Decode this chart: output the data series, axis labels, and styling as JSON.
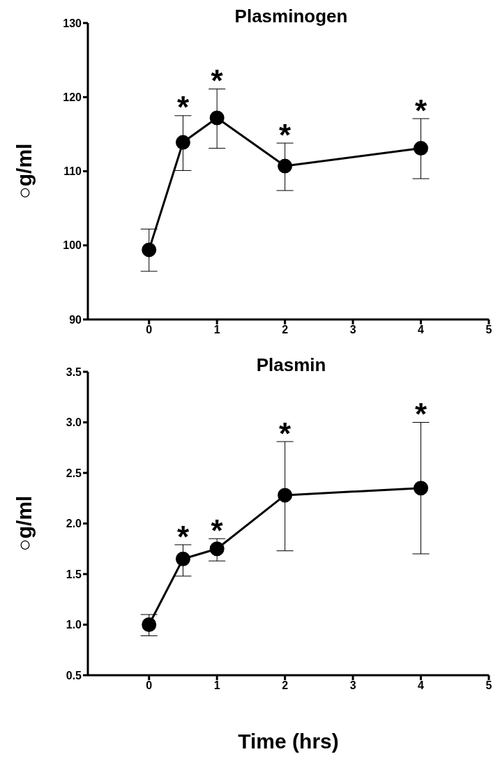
{
  "chart_data": [
    {
      "type": "line",
      "title": "Plasminogen",
      "ylabel": "○g/ml",
      "x": [
        0,
        0.5,
        1,
        2,
        4
      ],
      "series": [
        {
          "color": "#000000",
          "values": [
            99.4,
            113.9,
            117.2,
            110.7,
            113.1
          ],
          "errors": [
            [
              96.5,
              102.2
            ],
            [
              110.1,
              117.5
            ],
            [
              113.1,
              121.1
            ],
            [
              107.4,
              113.8
            ],
            [
              109.0,
              117.1
            ]
          ]
        }
      ],
      "xlim": [
        -0.9,
        5
      ],
      "xticks": [
        0,
        1,
        2,
        3,
        4,
        5
      ],
      "ylim": [
        90,
        130
      ],
      "yticks": [
        90,
        100,
        110,
        120,
        130
      ],
      "marker": "circle",
      "line_style": "solid",
      "grid": false,
      "legend": false,
      "annotations": [
        {
          "text": "*",
          "x": 0.5,
          "y": 117.5
        },
        {
          "text": "*",
          "x": 1,
          "y": 121.1
        },
        {
          "text": "*",
          "x": 2,
          "y": 113.8
        },
        {
          "text": "*",
          "x": 4,
          "y": 117.1
        }
      ]
    },
    {
      "type": "line",
      "title": "Plasmin",
      "ylabel": "○g/ml",
      "xlabel": "Time (hrs)",
      "x": [
        0,
        0.5,
        1,
        2,
        4
      ],
      "series": [
        {
          "color": "#000000",
          "values": [
            1.0,
            1.65,
            1.75,
            2.28,
            2.35
          ],
          "errors": [
            [
              0.89,
              1.1
            ],
            [
              1.48,
              1.79
            ],
            [
              1.63,
              1.85
            ],
            [
              1.73,
              2.81
            ],
            [
              1.7,
              3.0
            ]
          ]
        }
      ],
      "xlim": [
        -0.9,
        5
      ],
      "xticks": [
        0,
        1,
        2,
        3,
        4,
        5
      ],
      "ylim": [
        0.5,
        3.5
      ],
      "yticks": [
        {
          "value": 0.5,
          "label": "0.5"
        },
        {
          "value": 1,
          "label": "1.0"
        },
        {
          "value": 1.5,
          "label": "1.5"
        },
        {
          "value": 2,
          "label": "2.0"
        },
        {
          "value": 2.5,
          "label": "2.5"
        },
        {
          "value": 3,
          "label": "3.0"
        },
        {
          "value": 3.5,
          "label": "3.5"
        }
      ],
      "marker": "circle",
      "line_style": "solid",
      "grid": false,
      "legend": false,
      "annotations": [
        {
          "text": "*",
          "x": 0.5,
          "y": 1.79
        },
        {
          "text": "*",
          "x": 1,
          "y": 1.85
        },
        {
          "text": "*",
          "x": 2,
          "y": 2.81
        },
        {
          "text": "*",
          "x": 4,
          "y": 3.0
        }
      ]
    }
  ]
}
